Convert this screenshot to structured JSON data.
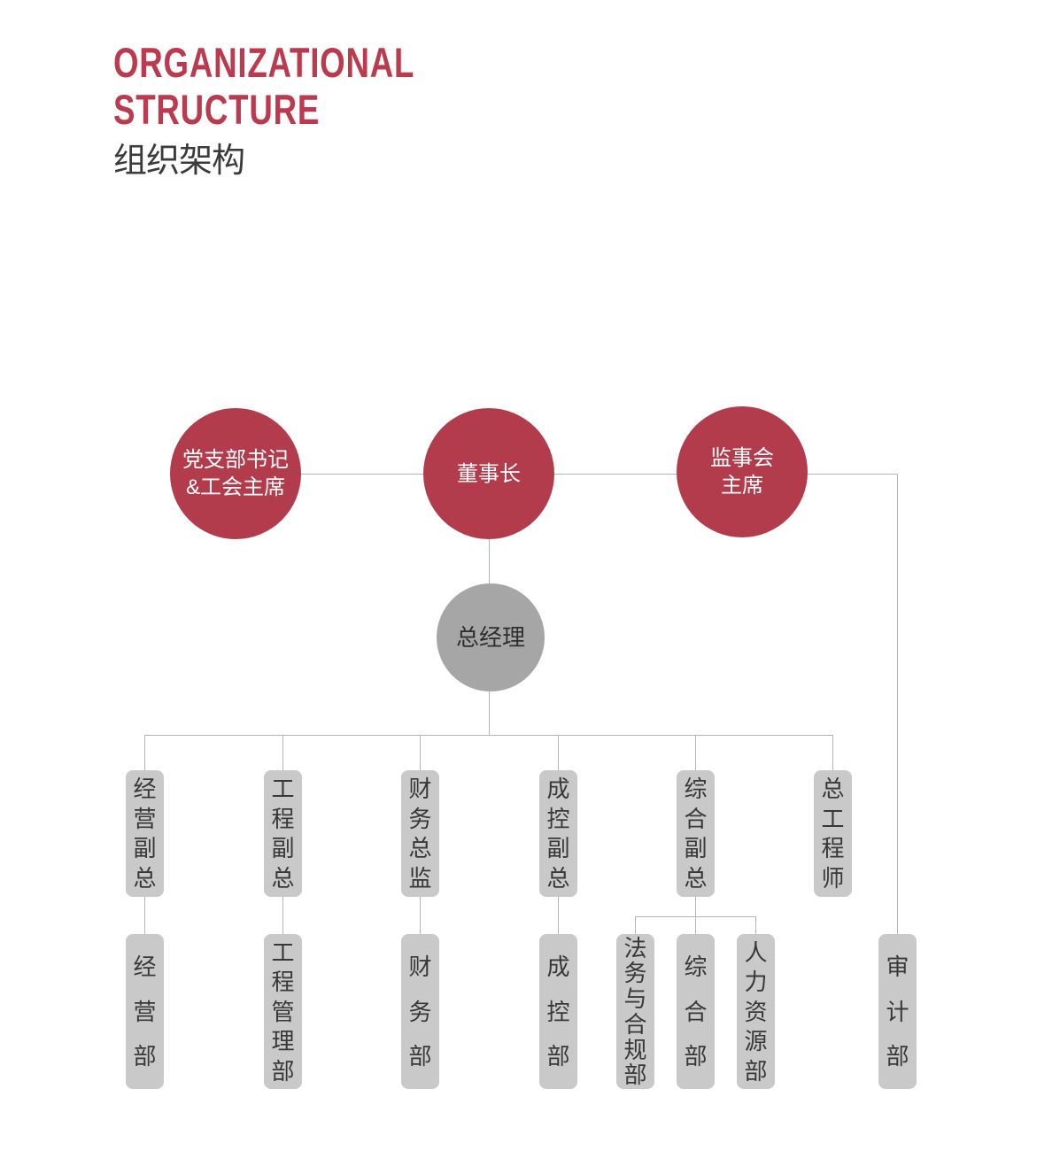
{
  "header": {
    "title_line1": "ORGANIZATIONAL",
    "title_line2": "STRUCTURE",
    "subtitle_cn": "组织架构"
  },
  "colors": {
    "title_red": "#bc3a4e",
    "node_red": "#b23c4c",
    "node_gray": "#a6a6a6",
    "box_gray": "#c9c9c9",
    "line_gray": "#b5b5b5",
    "text_dark": "#383838",
    "text_white": "#ffffff"
  },
  "org": {
    "top_row": [
      {
        "line1": "党支部书记",
        "line2": "&工会主席"
      },
      {
        "line1": "董事长",
        "line2": ""
      },
      {
        "line1": "监事会",
        "line2": "主席"
      }
    ],
    "general_manager": {
      "label": "总经理"
    },
    "middle_row": [
      {
        "label": "经营副总"
      },
      {
        "label": "工程副总"
      },
      {
        "label": "财务总监"
      },
      {
        "label": "成控副总"
      },
      {
        "label": "综合副总"
      },
      {
        "label": "总工程师"
      }
    ],
    "bottom_row": [
      {
        "label": "经营部"
      },
      {
        "label": "工程管理部"
      },
      {
        "label": "财务部"
      },
      {
        "label": "成控部"
      },
      {
        "label": "法务与合规部"
      },
      {
        "label": "综合部"
      },
      {
        "label": "人力资源部"
      },
      {
        "label": "审计部"
      }
    ]
  }
}
